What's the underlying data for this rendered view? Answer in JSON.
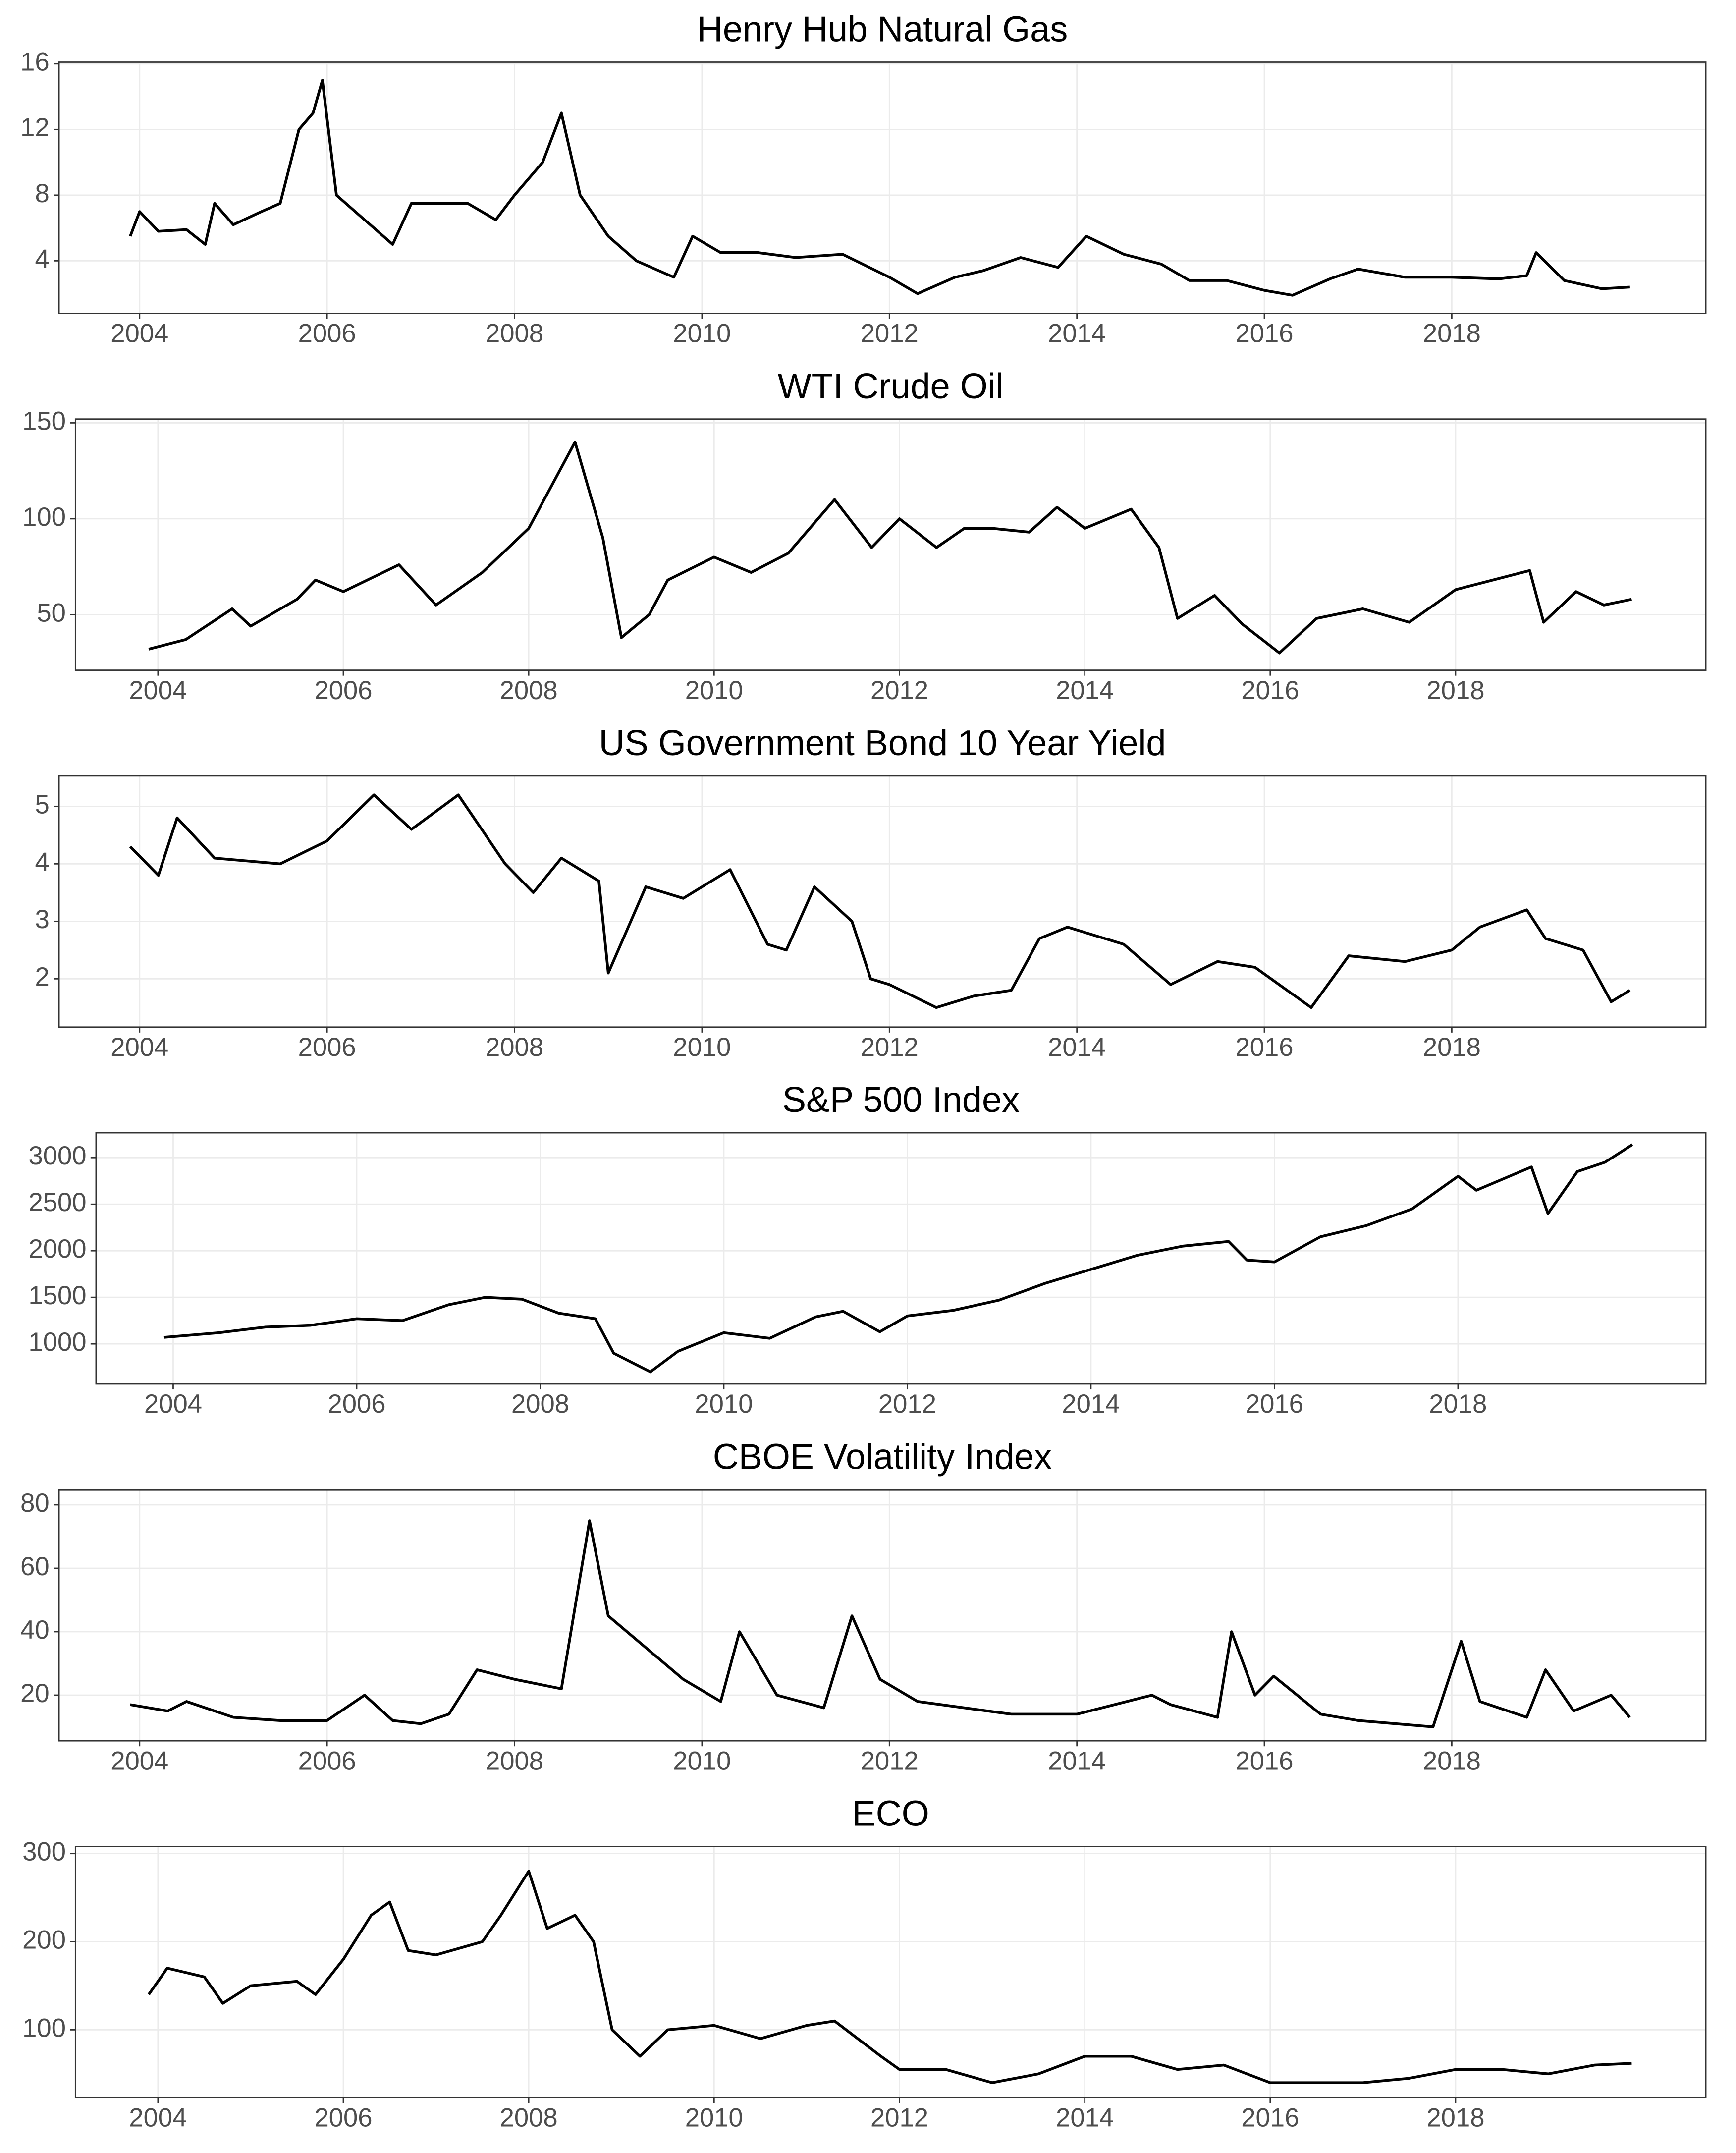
{
  "chart_data": [
    {
      "type": "line",
      "title": "Henry Hub Natural Gas",
      "color": "#000000",
      "grid": true,
      "xlim": [
        2003.14,
        2020.71
      ],
      "xticks": [
        2004,
        2006,
        2008,
        2010,
        2012,
        2014,
        2016,
        2018
      ],
      "ylim": [
        0.8,
        16.1
      ],
      "yticks": [
        4,
        8,
        12,
        16
      ],
      "x": [
        2003.9,
        2004.0,
        2004.2,
        2004.5,
        2004.7,
        2004.8,
        2005.0,
        2005.3,
        2005.5,
        2005.7,
        2005.85,
        2005.95,
        2006.1,
        2006.4,
        2006.7,
        2006.9,
        2007.2,
        2007.5,
        2007.8,
        2008.0,
        2008.3,
        2008.5,
        2008.7,
        2009.0,
        2009.3,
        2009.7,
        2009.9,
        2010.2,
        2010.6,
        2011.0,
        2011.5,
        2012.0,
        2012.3,
        2012.7,
        2013.0,
        2013.4,
        2013.8,
        2014.1,
        2014.5,
        2014.9,
        2015.2,
        2015.6,
        2016.0,
        2016.3,
        2016.7,
        2017.0,
        2017.5,
        2018.0,
        2018.5,
        2018.8,
        2018.9,
        2019.2,
        2019.6,
        2019.9
      ],
      "values": [
        5.5,
        7,
        5.8,
        5.9,
        5,
        7.5,
        6.2,
        7,
        7.5,
        12,
        13,
        15,
        8,
        6.5,
        5,
        7.5,
        7.5,
        7.5,
        6.5,
        8,
        10,
        13,
        8,
        5.5,
        4,
        3,
        5.5,
        4.5,
        4.5,
        4.2,
        4.4,
        3,
        2,
        3,
        3.4,
        4.2,
        3.6,
        5.5,
        4.4,
        3.8,
        2.8,
        2.8,
        2.2,
        1.9,
        2.9,
        3.5,
        3,
        3,
        2.9,
        3.1,
        4.5,
        2.8,
        2.3,
        2.4
      ]
    },
    {
      "type": "line",
      "title": "WTI Crude Oil",
      "color": "#000000",
      "grid": true,
      "xlim": [
        2003.11,
        2020.7
      ],
      "xticks": [
        2004,
        2006,
        2008,
        2010,
        2012,
        2014,
        2016,
        2018
      ],
      "ylim": [
        21,
        152
      ],
      "yticks": [
        50,
        100,
        150
      ],
      "x": [
        2003.9,
        2004.3,
        2004.8,
        2005.0,
        2005.5,
        2005.7,
        2006.0,
        2006.6,
        2007.0,
        2007.5,
        2008.0,
        2008.5,
        2008.8,
        2009.0,
        2009.3,
        2009.5,
        2010.0,
        2010.4,
        2010.8,
        2011.3,
        2011.7,
        2012.0,
        2012.4,
        2012.7,
        2013.0,
        2013.4,
        2013.7,
        2014.0,
        2014.5,
        2014.8,
        2015.0,
        2015.4,
        2015.7,
        2016.1,
        2016.5,
        2017.0,
        2017.5,
        2018.0,
        2018.8,
        2018.95,
        2019.3,
        2019.6,
        2019.9
      ],
      "values": [
        32,
        37,
        53,
        44,
        58,
        68,
        62,
        76,
        55,
        72,
        95,
        140,
        90,
        38,
        50,
        68,
        80,
        72,
        82,
        110,
        85,
        100,
        85,
        95,
        95,
        93,
        106,
        95,
        105,
        85,
        48,
        60,
        45,
        30,
        48,
        53,
        46,
        63,
        73,
        46,
        62,
        55,
        58
      ]
    },
    {
      "type": "line",
      "title": "US Government Bond 10 Year Yield",
      "color": "#000000",
      "grid": true,
      "xlim": [
        2003.14,
        2020.71
      ],
      "xticks": [
        2004,
        2006,
        2008,
        2010,
        2012,
        2014,
        2016,
        2018
      ],
      "ylim": [
        1.16,
        5.53
      ],
      "yticks": [
        2,
        3,
        4,
        5
      ],
      "x": [
        2003.9,
        2004.2,
        2004.4,
        2004.8,
        2005.5,
        2006.0,
        2006.5,
        2006.9,
        2007.4,
        2007.9,
        2008.2,
        2008.5,
        2008.9,
        2009.0,
        2009.4,
        2009.8,
        2010.3,
        2010.7,
        2010.9,
        2011.2,
        2011.6,
        2011.8,
        2012.0,
        2012.5,
        2012.9,
        2013.3,
        2013.6,
        2013.9,
        2014.5,
        2015.0,
        2015.5,
        2015.9,
        2016.5,
        2016.9,
        2017.5,
        2018.0,
        2018.3,
        2018.8,
        2019.0,
        2019.4,
        2019.7,
        2019.9
      ],
      "values": [
        4.3,
        3.8,
        4.8,
        4.1,
        4.0,
        4.4,
        5.2,
        4.6,
        5.2,
        4.0,
        3.5,
        4.1,
        3.7,
        2.1,
        3.6,
        3.4,
        3.9,
        2.6,
        2.5,
        3.6,
        3.0,
        2.0,
        1.9,
        1.5,
        1.7,
        1.8,
        2.7,
        2.9,
        2.6,
        1.9,
        2.3,
        2.2,
        1.5,
        2.4,
        2.3,
        2.5,
        2.9,
        3.2,
        2.7,
        2.5,
        1.6,
        1.8
      ]
    },
    {
      "type": "line",
      "title": "S&P 500 Index",
      "color": "#000000",
      "grid": true,
      "xlim": [
        2003.16,
        2020.7
      ],
      "xticks": [
        2004,
        2006,
        2008,
        2010,
        2012,
        2014,
        2016,
        2018
      ],
      "ylim": [
        570,
        3267
      ],
      "yticks": [
        1000,
        1500,
        2000,
        2500,
        3000
      ],
      "x": [
        2003.9,
        2004.5,
        2005.0,
        2005.5,
        2006.0,
        2006.5,
        2007.0,
        2007.4,
        2007.8,
        2008.2,
        2008.6,
        2008.8,
        2009.2,
        2009.5,
        2010.0,
        2010.5,
        2011.0,
        2011.3,
        2011.7,
        2012.0,
        2012.5,
        2013.0,
        2013.5,
        2014.0,
        2014.5,
        2015.0,
        2015.5,
        2015.7,
        2016.0,
        2016.5,
        2017.0,
        2017.5,
        2018.0,
        2018.2,
        2018.8,
        2018.98,
        2019.3,
        2019.6,
        2019.9
      ],
      "values": [
        1070,
        1120,
        1180,
        1200,
        1270,
        1250,
        1420,
        1500,
        1480,
        1330,
        1270,
        900,
        700,
        920,
        1120,
        1060,
        1290,
        1350,
        1130,
        1300,
        1360,
        1470,
        1650,
        1800,
        1950,
        2050,
        2100,
        1900,
        1880,
        2150,
        2270,
        2450,
        2800,
        2650,
        2900,
        2400,
        2850,
        2950,
        3140
      ]
    },
    {
      "type": "line",
      "title": "CBOE Volatility Index",
      "color": "#000000",
      "grid": true,
      "xlim": [
        2003.14,
        2020.71
      ],
      "xticks": [
        2004,
        2006,
        2008,
        2010,
        2012,
        2014,
        2016,
        2018
      ],
      "ylim": [
        5.6,
        84.8
      ],
      "yticks": [
        20,
        40,
        60,
        80
      ],
      "x": [
        2003.9,
        2004.3,
        2004.5,
        2005.0,
        2005.5,
        2006.0,
        2006.4,
        2006.7,
        2007.0,
        2007.3,
        2007.6,
        2008.0,
        2008.5,
        2008.8,
        2008.9,
        2009.0,
        2009.4,
        2009.8,
        2010.2,
        2010.4,
        2010.8,
        2011.3,
        2011.6,
        2011.9,
        2012.3,
        2012.8,
        2013.3,
        2014.0,
        2014.8,
        2015.0,
        2015.5,
        2015.65,
        2015.9,
        2016.1,
        2016.6,
        2017.0,
        2017.8,
        2018.1,
        2018.3,
        2018.8,
        2019.0,
        2019.3,
        2019.7,
        2019.9
      ],
      "values": [
        17,
        15,
        18,
        13,
        12,
        12,
        20,
        12,
        11,
        14,
        28,
        25,
        22,
        75,
        60,
        45,
        35,
        25,
        18,
        40,
        20,
        16,
        45,
        25,
        18,
        16,
        14,
        14,
        20,
        17,
        13,
        40,
        20,
        26,
        14,
        12,
        10,
        37,
        18,
        13,
        28,
        15,
        20,
        13
      ]
    },
    {
      "type": "line",
      "title": "ECO",
      "color": "#000000",
      "grid": true,
      "xlim": [
        2003.11,
        2020.7
      ],
      "xticks": [
        2004,
        2006,
        2008,
        2010,
        2012,
        2014,
        2016,
        2018
      ],
      "ylim": [
        23,
        308
      ],
      "yticks": [
        100,
        200,
        300
      ],
      "x": [
        2003.9,
        2004.1,
        2004.5,
        2004.7,
        2005.0,
        2005.5,
        2005.7,
        2006.0,
        2006.3,
        2006.5,
        2006.7,
        2007.0,
        2007.5,
        2007.7,
        2008.0,
        2008.2,
        2008.5,
        2008.7,
        2008.9,
        2009.2,
        2009.5,
        2010.0,
        2010.5,
        2011.0,
        2011.3,
        2011.8,
        2012.0,
        2012.5,
        2013.0,
        2013.5,
        2014.0,
        2014.5,
        2015.0,
        2015.5,
        2016.0,
        2016.5,
        2017.0,
        2017.5,
        2018.0,
        2018.5,
        2019.0,
        2019.5,
        2019.9
      ],
      "values": [
        140,
        170,
        160,
        130,
        150,
        155,
        140,
        180,
        230,
        245,
        190,
        185,
        200,
        230,
        280,
        215,
        230,
        200,
        100,
        70,
        100,
        105,
        90,
        105,
        110,
        70,
        55,
        55,
        40,
        50,
        70,
        70,
        55,
        60,
        40,
        40,
        40,
        45,
        55,
        55,
        50,
        60,
        62
      ]
    }
  ]
}
